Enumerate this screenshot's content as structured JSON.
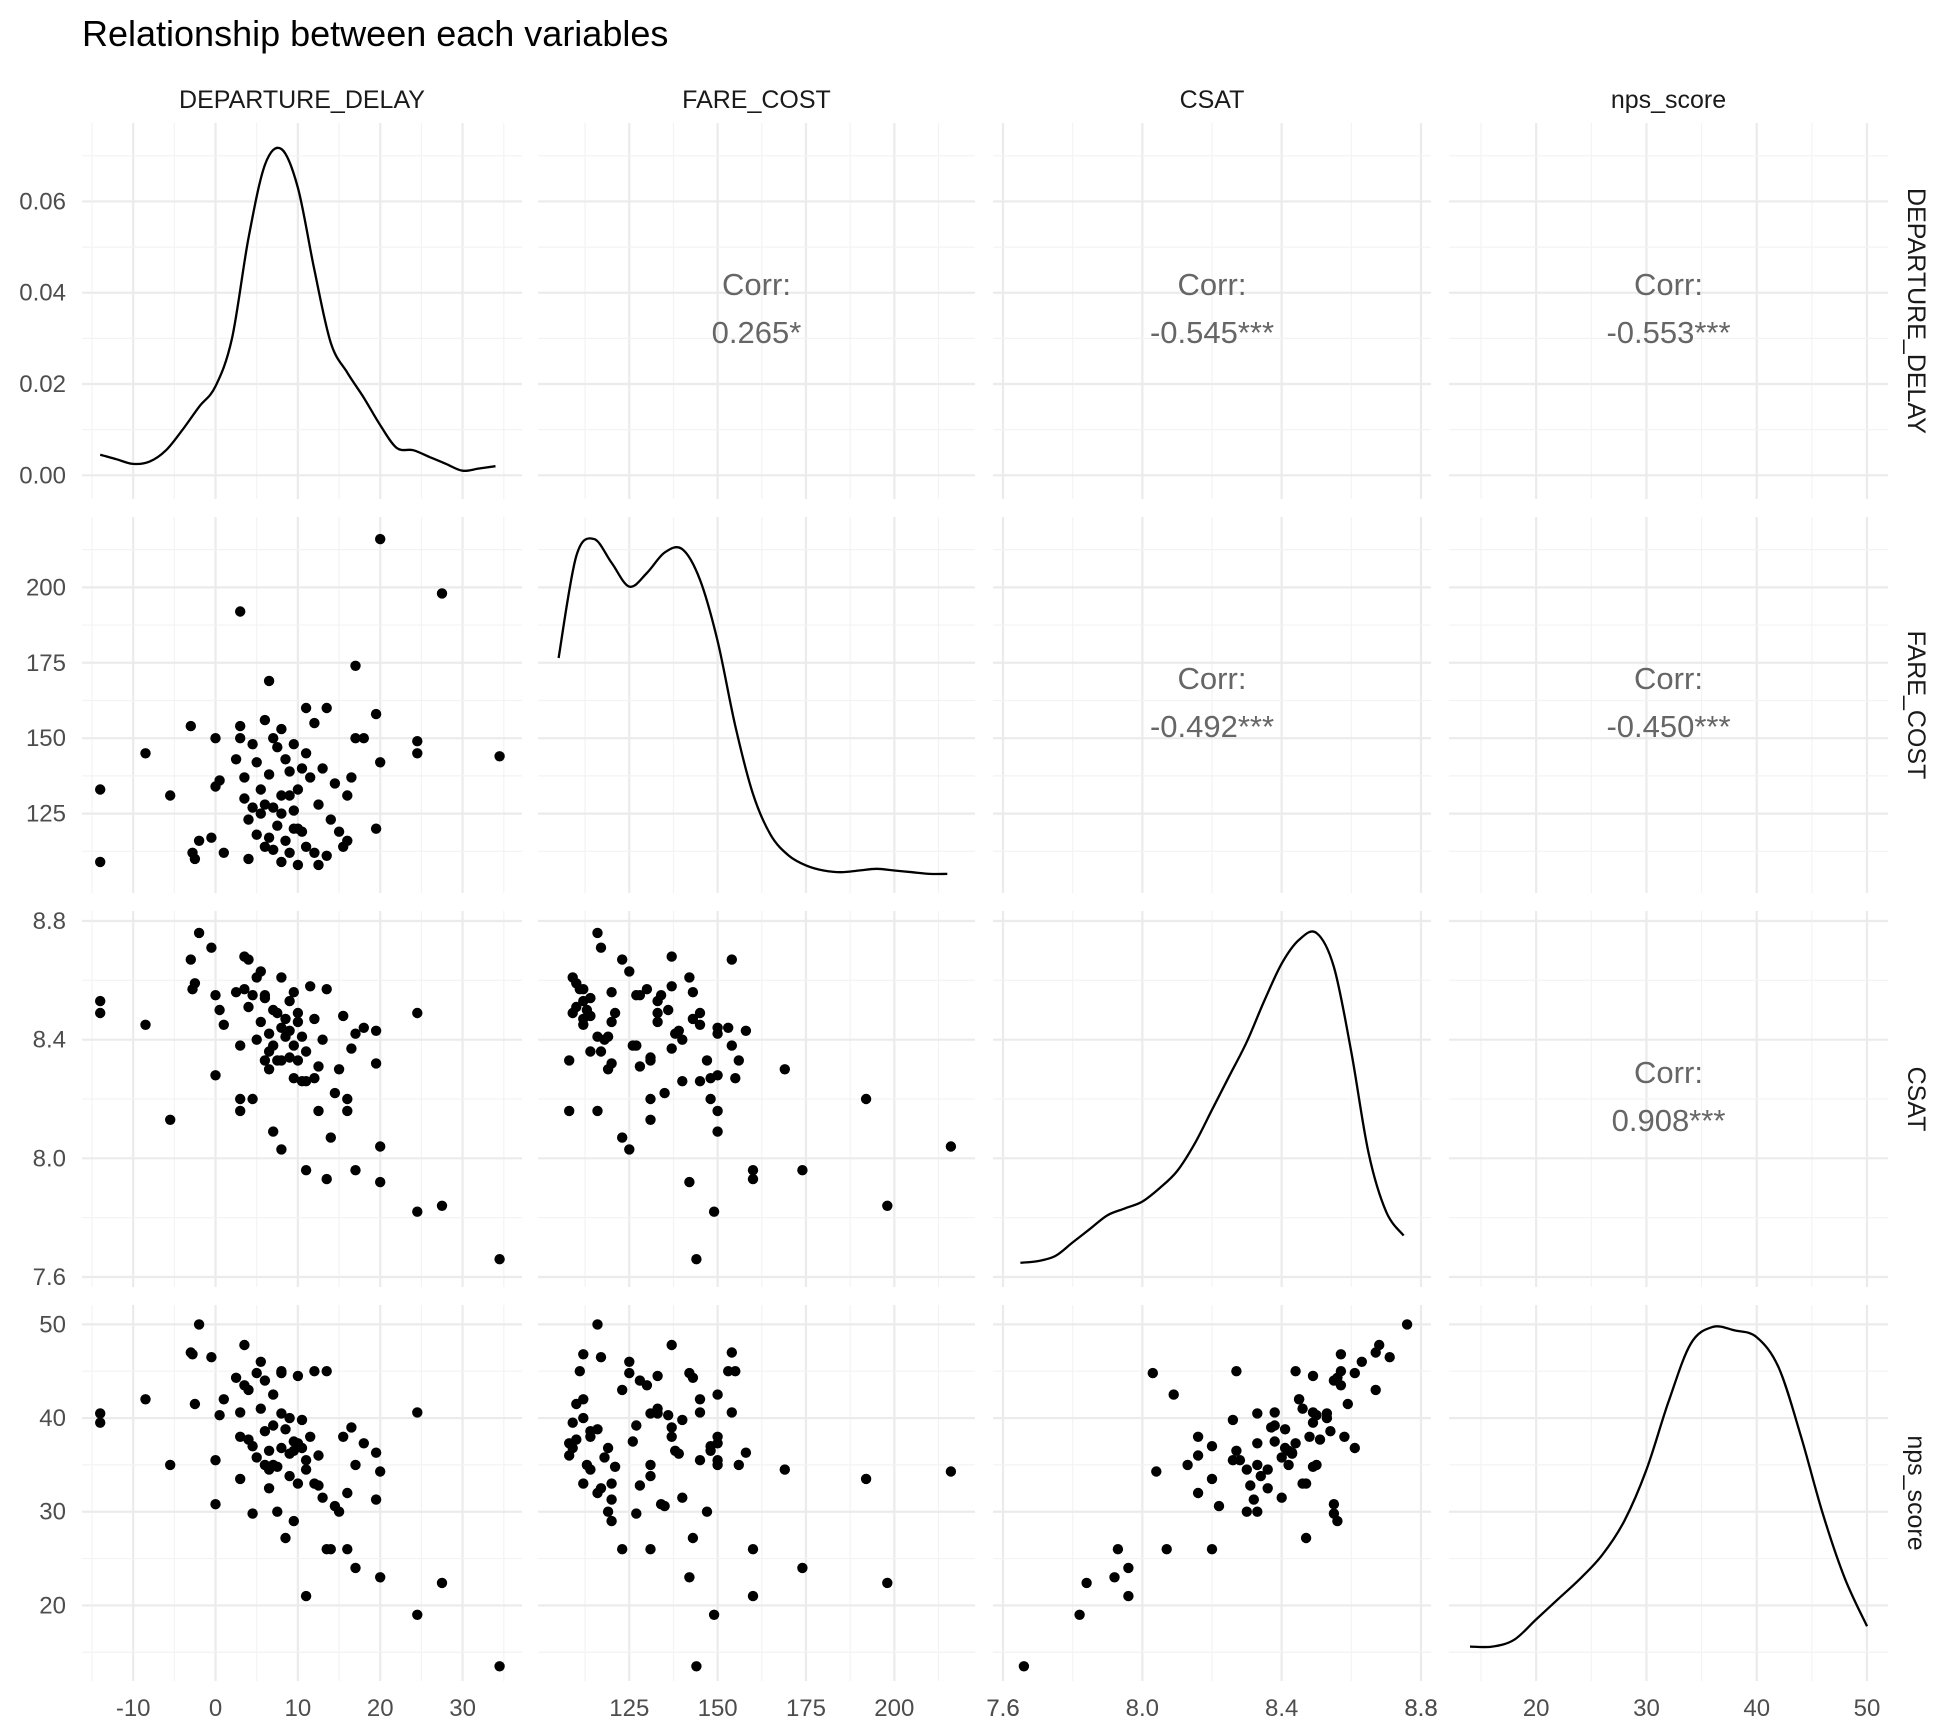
{
  "title": "Relationship between each variables",
  "variables": [
    "DEPARTURE_DELAY",
    "FARE_COST",
    "CSAT",
    "nps_score"
  ],
  "chart_data": {
    "type": "scatter",
    "subtype": "pairs-matrix",
    "title": "Relationship between each variables",
    "grid": true,
    "axes": {
      "DEPARTURE_DELAY": {
        "range": [
          -15,
          36
        ],
        "ticks": [
          -10,
          0,
          10,
          20,
          30
        ],
        "tick_labels": [
          "-10",
          "0",
          "10",
          "20",
          "30"
        ]
      },
      "FARE_COST": {
        "range": [
          102,
          220
        ],
        "ticks": [
          125,
          150,
          175,
          200
        ],
        "tick_labels": [
          "125",
          "150",
          "175",
          "200"
        ]
      },
      "CSAT": {
        "range": [
          7.6,
          8.8
        ],
        "ticks": [
          7.6,
          8.0,
          8.4,
          8.8
        ],
        "tick_labels": [
          "7.6",
          "8.0",
          "8.4",
          "8.8"
        ]
      },
      "nps_score": {
        "range": [
          13,
          51
        ],
        "ticks": [
          20,
          30,
          40,
          50
        ],
        "tick_labels": [
          "20",
          "30",
          "40",
          "50"
        ]
      }
    },
    "density_axis": {
      "range": [
        -0.003,
        0.075
      ],
      "ticks": [
        0,
        0.02,
        0.04,
        0.06
      ],
      "tick_labels": [
        "0.00",
        "0.02",
        "0.04",
        "0.06"
      ]
    },
    "correlations": [
      {
        "row": "DEPARTURE_DELAY",
        "col": "FARE_COST",
        "label": "Corr:",
        "value": "0.265*"
      },
      {
        "row": "DEPARTURE_DELAY",
        "col": "CSAT",
        "label": "Corr:",
        "value": "-0.545***"
      },
      {
        "row": "DEPARTURE_DELAY",
        "col": "nps_score",
        "label": "Corr:",
        "value": "-0.553***"
      },
      {
        "row": "FARE_COST",
        "col": "CSAT",
        "label": "Corr:",
        "value": "-0.492***"
      },
      {
        "row": "FARE_COST",
        "col": "nps_score",
        "label": "Corr:",
        "value": "-0.450***"
      },
      {
        "row": "CSAT",
        "col": "nps_score",
        "label": "Corr:",
        "value": "0.908***"
      }
    ],
    "densities": {
      "DEPARTURE_DELAY": {
        "x": [
          -14,
          -12,
          -10,
          -8,
          -6,
          -4,
          -2,
          0,
          2,
          4,
          6,
          8,
          10,
          12,
          14,
          16,
          18,
          20,
          22,
          24,
          26,
          28,
          30,
          32,
          34
        ],
        "y": [
          0.0045,
          0.0035,
          0.0025,
          0.003,
          0.0055,
          0.01,
          0.015,
          0.0195,
          0.03,
          0.052,
          0.068,
          0.0715,
          0.063,
          0.045,
          0.029,
          0.0225,
          0.017,
          0.011,
          0.006,
          0.0055,
          0.004,
          0.0025,
          0.001,
          0.0015,
          0.002
        ]
      },
      "FARE_COST": {
        "x": [
          105,
          110,
          115,
          120,
          125,
          130,
          135,
          140,
          145,
          150,
          155,
          160,
          165,
          170,
          175,
          180,
          185,
          190,
          195,
          200,
          205,
          210,
          215
        ],
        "y": [
          0.65,
          0.95,
          1.0,
          0.93,
          0.86,
          0.9,
          0.96,
          0.97,
          0.88,
          0.7,
          0.45,
          0.25,
          0.13,
          0.07,
          0.04,
          0.025,
          0.02,
          0.025,
          0.03,
          0.025,
          0.02,
          0.015,
          0.015
        ]
      },
      "CSAT": {
        "x": [
          7.65,
          7.7,
          7.75,
          7.8,
          7.85,
          7.9,
          7.95,
          8.0,
          8.05,
          8.1,
          8.15,
          8.2,
          8.25,
          8.3,
          8.35,
          8.4,
          8.45,
          8.5,
          8.55,
          8.6,
          8.65,
          8.7,
          8.75
        ],
        "y": [
          0.03,
          0.035,
          0.05,
          0.09,
          0.13,
          0.17,
          0.19,
          0.21,
          0.25,
          0.3,
          0.38,
          0.48,
          0.58,
          0.68,
          0.8,
          0.91,
          0.98,
          1.0,
          0.9,
          0.65,
          0.35,
          0.18,
          0.11
        ]
      },
      "nps_score": {
        "x": [
          14,
          16,
          18,
          20,
          22,
          24,
          26,
          28,
          30,
          32,
          34,
          36,
          38,
          40,
          42,
          44,
          46,
          48,
          50
        ],
        "y": [
          0.06,
          0.06,
          0.08,
          0.14,
          0.2,
          0.26,
          0.33,
          0.43,
          0.58,
          0.78,
          0.95,
          1.0,
          0.99,
          0.97,
          0.88,
          0.68,
          0.45,
          0.26,
          0.12
        ]
      }
    },
    "points": [
      {
        "DEPARTURE_DELAY": -14,
        "FARE_COST": 133,
        "CSAT": 8.53,
        "nps_score": 40.5
      },
      {
        "DEPARTURE_DELAY": -14,
        "FARE_COST": 109,
        "CSAT": 8.49,
        "nps_score": 39.5
      },
      {
        "DEPARTURE_DELAY": -8.5,
        "FARE_COST": 145,
        "CSAT": 8.45,
        "nps_score": 42
      },
      {
        "DEPARTURE_DELAY": -5.5,
        "FARE_COST": 131,
        "CSAT": 8.13,
        "nps_score": 35
      },
      {
        "DEPARTURE_DELAY": -3,
        "FARE_COST": 154,
        "CSAT": 8.67,
        "nps_score": 47
      },
      {
        "DEPARTURE_DELAY": -2.5,
        "FARE_COST": 110,
        "CSAT": 8.59,
        "nps_score": 41.5
      },
      {
        "DEPARTURE_DELAY": -2,
        "FARE_COST": 116,
        "CSAT": 8.76,
        "nps_score": 50
      },
      {
        "DEPARTURE_DELAY": -2.8,
        "FARE_COST": 112,
        "CSAT": 8.57,
        "nps_score": 46.8
      },
      {
        "DEPARTURE_DELAY": -0.5,
        "FARE_COST": 117,
        "CSAT": 8.71,
        "nps_score": 46.5
      },
      {
        "DEPARTURE_DELAY": 0,
        "FARE_COST": 150,
        "CSAT": 8.28,
        "nps_score": 35.5
      },
      {
        "DEPARTURE_DELAY": 0.5,
        "FARE_COST": 136,
        "CSAT": 8.5,
        "nps_score": 40.3
      },
      {
        "DEPARTURE_DELAY": 0,
        "FARE_COST": 134,
        "CSAT": 8.55,
        "nps_score": 30.8
      },
      {
        "DEPARTURE_DELAY": 1,
        "FARE_COST": 112,
        "CSAT": 8.45,
        "nps_score": 42
      },
      {
        "DEPARTURE_DELAY": 3,
        "FARE_COST": 192,
        "CSAT": 8.2,
        "nps_score": 33.5
      },
      {
        "DEPARTURE_DELAY": 3,
        "FARE_COST": 150,
        "CSAT": 8.16,
        "nps_score": 38
      },
      {
        "DEPARTURE_DELAY": 3,
        "FARE_COST": 154,
        "CSAT": 8.38,
        "nps_score": 40.6
      },
      {
        "DEPARTURE_DELAY": 3.5,
        "FARE_COST": 137,
        "CSAT": 8.68,
        "nps_score": 47.8
      },
      {
        "DEPARTURE_DELAY": 4,
        "FARE_COST": 123,
        "CSAT": 8.67,
        "nps_score": 43
      },
      {
        "DEPARTURE_DELAY": 4,
        "FARE_COST": 110,
        "CSAT": 8.51,
        "nps_score": 37.7
      },
      {
        "DEPARTURE_DELAY": 4.5,
        "FARE_COST": 127,
        "CSAT": 8.55,
        "nps_score": 29.8
      },
      {
        "DEPARTURE_DELAY": 5,
        "FARE_COST": 142,
        "CSAT": 8.61,
        "nps_score": 44.8
      },
      {
        "DEPARTURE_DELAY": 5,
        "FARE_COST": 118,
        "CSAT": 8.4,
        "nps_score": 35.8
      },
      {
        "DEPARTURE_DELAY": 5.5,
        "FARE_COST": 125,
        "CSAT": 8.63,
        "nps_score": 46
      },
      {
        "DEPARTURE_DELAY": 6,
        "FARE_COST": 156,
        "CSAT": 8.33,
        "nps_score": 35
      },
      {
        "DEPARTURE_DELAY": 6,
        "FARE_COST": 128,
        "CSAT": 8.55,
        "nps_score": 44
      },
      {
        "DEPARTURE_DELAY": 6.5,
        "FARE_COST": 169,
        "CSAT": 8.3,
        "nps_score": 34.5
      },
      {
        "DEPARTURE_DELAY": 6.5,
        "FARE_COST": 117,
        "CSAT": 8.36,
        "nps_score": 32.5
      },
      {
        "DEPARTURE_DELAY": 7,
        "FARE_COST": 150,
        "CSAT": 8.09,
        "nps_score": 42.5
      },
      {
        "DEPARTURE_DELAY": 7,
        "FARE_COST": 113,
        "CSAT": 8.5,
        "nps_score": 35
      },
      {
        "DEPARTURE_DELAY": 7.5,
        "FARE_COST": 147,
        "CSAT": 8.33,
        "nps_score": 30
      },
      {
        "DEPARTURE_DELAY": 8,
        "FARE_COST": 153,
        "CSAT": 8.44,
        "nps_score": 45
      },
      {
        "DEPARTURE_DELAY": 8,
        "FARE_COST": 125,
        "CSAT": 8.03,
        "nps_score": 44.8
      },
      {
        "DEPARTURE_DELAY": 8,
        "FARE_COST": 109,
        "CSAT": 8.61,
        "nps_score": 36.8
      },
      {
        "DEPARTURE_DELAY": 8.5,
        "FARE_COST": 143,
        "CSAT": 8.47,
        "nps_score": 27.2
      },
      {
        "DEPARTURE_DELAY": 8.5,
        "FARE_COST": 116,
        "CSAT": 8.41,
        "nps_score": 38.8
      },
      {
        "DEPARTURE_DELAY": 9,
        "FARE_COST": 131,
        "CSAT": 8.34,
        "nps_score": 33.8
      },
      {
        "DEPARTURE_DELAY": 9,
        "FARE_COST": 112,
        "CSAT": 8.53,
        "nps_score": 40
      },
      {
        "DEPARTURE_DELAY": 9.5,
        "FARE_COST": 148,
        "CSAT": 8.27,
        "nps_score": 36.5
      },
      {
        "DEPARTURE_DELAY": 9.5,
        "FARE_COST": 120,
        "CSAT": 8.56,
        "nps_score": 29
      },
      {
        "DEPARTURE_DELAY": 10,
        "FARE_COST": 133,
        "CSAT": 8.49,
        "nps_score": 44.5
      },
      {
        "DEPARTURE_DELAY": 10,
        "FARE_COST": 108,
        "CSAT": 8.33,
        "nps_score": 37.3
      },
      {
        "DEPARTURE_DELAY": 10,
        "FARE_COST": 120,
        "CSAT": 8.46,
        "nps_score": 33
      },
      {
        "DEPARTURE_DELAY": 10.5,
        "FARE_COST": 140,
        "CSAT": 8.26,
        "nps_score": 39.8
      },
      {
        "DEPARTURE_DELAY": 11,
        "FARE_COST": 114,
        "CSAT": 8.36,
        "nps_score": 34.5
      },
      {
        "DEPARTURE_DELAY": 11,
        "FARE_COST": 160,
        "CSAT": 7.96,
        "nps_score": 21
      },
      {
        "DEPARTURE_DELAY": 11.5,
        "FARE_COST": 137,
        "CSAT": 8.58,
        "nps_score": 38
      },
      {
        "DEPARTURE_DELAY": 12,
        "FARE_COST": 155,
        "CSAT": 8.27,
        "nps_score": 45
      },
      {
        "DEPARTURE_DELAY": 12,
        "FARE_COST": 112,
        "CSAT": 8.47,
        "nps_score": 33
      },
      {
        "DEPARTURE_DELAY": 12.5,
        "FARE_COST": 108,
        "CSAT": 8.16,
        "nps_score": 36
      },
      {
        "DEPARTURE_DELAY": 13,
        "FARE_COST": 140,
        "CSAT": 8.4,
        "nps_score": 31.5
      },
      {
        "DEPARTURE_DELAY": 13.5,
        "FARE_COST": 111,
        "CSAT": 8.57,
        "nps_score": 45
      },
      {
        "DEPARTURE_DELAY": 13.5,
        "FARE_COST": 160,
        "CSAT": 7.93,
        "nps_score": 26
      },
      {
        "DEPARTURE_DELAY": 14,
        "FARE_COST": 123,
        "CSAT": 8.07,
        "nps_score": 26
      },
      {
        "DEPARTURE_DELAY": 15,
        "FARE_COST": 119,
        "CSAT": 8.3,
        "nps_score": 30
      },
      {
        "DEPARTURE_DELAY": 15.5,
        "FARE_COST": 114,
        "CSAT": 8.48,
        "nps_score": 38
      },
      {
        "DEPARTURE_DELAY": 16,
        "FARE_COST": 131,
        "CSAT": 8.2,
        "nps_score": 26
      },
      {
        "DEPARTURE_DELAY": 16,
        "FARE_COST": 116,
        "CSAT": 8.16,
        "nps_score": 32
      },
      {
        "DEPARTURE_DELAY": 16.5,
        "FARE_COST": 137,
        "CSAT": 8.37,
        "nps_score": 39
      },
      {
        "DEPARTURE_DELAY": 17,
        "FARE_COST": 174,
        "CSAT": 7.96,
        "nps_score": 24
      },
      {
        "DEPARTURE_DELAY": 17,
        "FARE_COST": 150,
        "CSAT": 8.42,
        "nps_score": 35
      },
      {
        "DEPARTURE_DELAY": 18,
        "FARE_COST": 150,
        "CSAT": 8.44,
        "nps_score": 37.3
      },
      {
        "DEPARTURE_DELAY": 19.5,
        "FARE_COST": 158,
        "CSAT": 8.43,
        "nps_score": 36.3
      },
      {
        "DEPARTURE_DELAY": 20,
        "FARE_COST": 216,
        "CSAT": 8.04,
        "nps_score": 34.3
      },
      {
        "DEPARTURE_DELAY": 19.5,
        "FARE_COST": 120,
        "CSAT": 8.32,
        "nps_score": 31.3
      },
      {
        "DEPARTURE_DELAY": 20,
        "FARE_COST": 142,
        "CSAT": 7.92,
        "nps_score": 23
      },
      {
        "DEPARTURE_DELAY": 24.5,
        "FARE_COST": 149,
        "CSAT": 7.82,
        "nps_score": 19
      },
      {
        "DEPARTURE_DELAY": 24.5,
        "FARE_COST": 145,
        "CSAT": 8.49,
        "nps_score": 40.6
      },
      {
        "DEPARTURE_DELAY": 27.5,
        "FARE_COST": 198,
        "CSAT": 7.84,
        "nps_score": 22.4
      },
      {
        "DEPARTURE_DELAY": 34.5,
        "FARE_COST": 144,
        "CSAT": 7.66,
        "nps_score": 13.5
      },
      {
        "DEPARTURE_DELAY": 4.5,
        "FARE_COST": 148,
        "CSAT": 8.2,
        "nps_score": 37
      },
      {
        "DEPARTURE_DELAY": 6.5,
        "FARE_COST": 138,
        "CSAT": 8.42,
        "nps_score": 36.5
      },
      {
        "DEPARTURE_DELAY": 9.5,
        "FARE_COST": 126,
        "CSAT": 8.38,
        "nps_score": 37.5
      },
      {
        "DEPARTURE_DELAY": 7.5,
        "FARE_COST": 121,
        "CSAT": 8.49,
        "nps_score": 34.8
      },
      {
        "DEPARTURE_DELAY": 5.5,
        "FARE_COST": 133,
        "CSAT": 8.46,
        "nps_score": 41
      },
      {
        "DEPARTURE_DELAY": 3.5,
        "FARE_COST": 130,
        "CSAT": 8.57,
        "nps_score": 43.5
      },
      {
        "DEPARTURE_DELAY": 11,
        "FARE_COST": 145,
        "CSAT": 8.26,
        "nps_score": 35.5
      },
      {
        "DEPARTURE_DELAY": 8,
        "FARE_COST": 131,
        "CSAT": 8.33,
        "nps_score": 40.5
      },
      {
        "DEPARTURE_DELAY": 10.5,
        "FARE_COST": 119,
        "CSAT": 8.41,
        "nps_score": 36.8
      },
      {
        "DEPARTURE_DELAY": 6,
        "FARE_COST": 114,
        "CSAT": 8.54,
        "nps_score": 38.6
      },
      {
        "DEPARTURE_DELAY": 12.5,
        "FARE_COST": 128,
        "CSAT": 8.31,
        "nps_score": 32.8
      },
      {
        "DEPARTURE_DELAY": 2.5,
        "FARE_COST": 143,
        "CSAT": 8.56,
        "nps_score": 44.3
      },
      {
        "DEPARTURE_DELAY": 14.5,
        "FARE_COST": 135,
        "CSAT": 8.22,
        "nps_score": 30.6
      },
      {
        "DEPARTURE_DELAY": 9,
        "FARE_COST": 139,
        "CSAT": 8.43,
        "nps_score": 36.2
      },
      {
        "DEPARTURE_DELAY": 7,
        "FARE_COST": 127,
        "CSAT": 8.38,
        "nps_score": 39.2
      }
    ]
  }
}
